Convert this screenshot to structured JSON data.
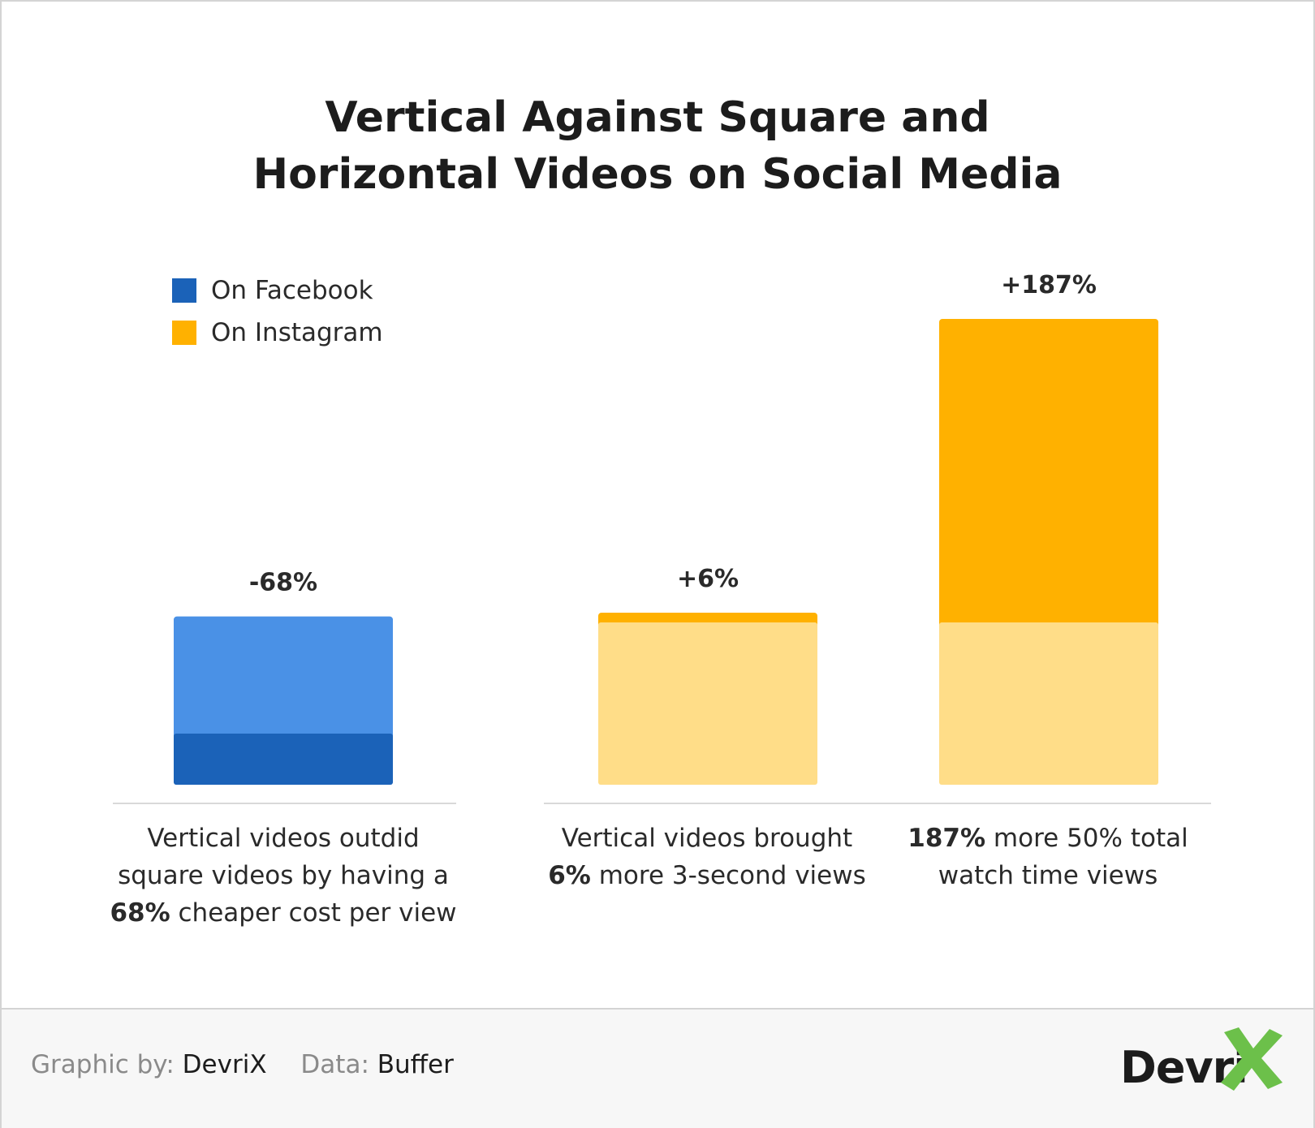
{
  "title": {
    "line1": "Vertical Against Square and",
    "line2": "Horizontal Videos on Social Media"
  },
  "legend": [
    {
      "label": "On Facebook",
      "color": "#1b62b8"
    },
    {
      "label": "On Instagram",
      "color": "#ffb100"
    }
  ],
  "chart_data": {
    "type": "bar",
    "categories": [
      "Vertical videos outdid square videos by having a 68% cheaper cost per view",
      "Vertical videos brought 6% more 3-second views",
      "187% more 50% total watch time views"
    ],
    "series": [
      {
        "name": "On Facebook",
        "values": [
          -68,
          null,
          null
        ]
      },
      {
        "name": "On Instagram",
        "values": [
          null,
          6,
          187
        ]
      }
    ],
    "data_labels": [
      "-68%",
      "+6%",
      "+187%"
    ],
    "grid": false,
    "legend_position": "top-left"
  },
  "captions": [
    {
      "l1": "Vertical videos outdid",
      "l2": "square videos by having a",
      "l3_bold": "68%",
      "l3_rest": " cheaper cost per view"
    },
    {
      "l1": "Vertical videos brought",
      "l2_bold": "6%",
      "l2_rest": " more 3-second views"
    },
    {
      "l1_bold": "187%",
      "l1_rest": " more 50% total",
      "l2": "watch time views"
    }
  ],
  "colors": {
    "facebook_dark": "#1b62b8",
    "facebook_light": "#4a91e6",
    "instagram_dark": "#ffb100",
    "instagram_light": "#ffdd88",
    "baseline": "#d9d9d9"
  },
  "footer": {
    "graphic_label": "Graphic by:",
    "graphic_value": "DevriX",
    "data_label": "Data:",
    "data_value": "Buffer",
    "logo_text": "Devri"
  }
}
